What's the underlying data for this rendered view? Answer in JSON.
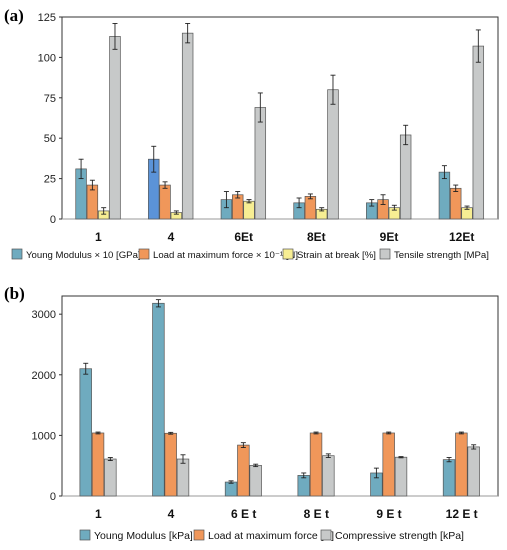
{
  "chart_data": [
    {
      "panel": "(a)",
      "type": "bar",
      "categories": [
        "1",
        "4",
        "6Et",
        "8Et",
        "9Et",
        "12Et"
      ],
      "ylim": [
        0,
        125
      ],
      "yticks": [
        0,
        25,
        50,
        75,
        100,
        125
      ],
      "grid": false,
      "legend_position": "bottom",
      "series": [
        {
          "name": "Young Modulus × 10 [GPa]",
          "values": [
            31,
            37,
            12,
            10,
            10,
            29
          ],
          "errors": [
            6,
            8,
            5,
            3,
            2,
            4
          ],
          "color": "#6fabbf"
        },
        {
          "name": "Load at maximum force × 10⁻¹ [N]",
          "values": [
            21,
            21,
            15,
            14,
            12,
            19
          ],
          "errors": [
            3,
            2,
            2,
            1.5,
            3,
            2
          ],
          "color": "#f0975a"
        },
        {
          "name": "Strain at break [%]",
          "values": [
            5,
            4,
            11,
            6,
            7,
            7
          ],
          "errors": [
            2,
            1,
            1,
            1,
            1.5,
            1
          ],
          "color": "#f7ee93"
        },
        {
          "name": "Tensile strength [MPa]",
          "values": [
            113,
            115,
            69,
            80,
            52,
            107
          ],
          "errors": [
            8,
            6,
            9,
            9,
            6,
            10
          ],
          "color": "#c7c9c9"
        }
      ],
      "highlight": {
        "series": 0,
        "category": 1,
        "color": "#5b93d8"
      }
    },
    {
      "panel": "(b)",
      "type": "bar",
      "categories": [
        "1",
        "4",
        "6 E t",
        "8 E t",
        "9 E t",
        "12 E t"
      ],
      "ylim": [
        0,
        3300
      ],
      "yticks": [
        0,
        1000,
        2000,
        3000
      ],
      "grid": false,
      "legend_position": "bottom",
      "series": [
        {
          "name": "Young Modulus [kPa]",
          "values": [
            2100,
            3180,
            230,
            340,
            380,
            600
          ],
          "errors": [
            90,
            60,
            20,
            40,
            80,
            35
          ],
          "color": "#6fabbf"
        },
        {
          "name": "Load at maximum force [N]",
          "values": [
            1040,
            1035,
            840,
            1040,
            1040,
            1040
          ],
          "errors": [
            15,
            15,
            40,
            15,
            15,
            15
          ],
          "color": "#f0975a"
        },
        {
          "name": "Compressive strength [kPa]",
          "values": [
            610,
            610,
            505,
            665,
            640,
            810
          ],
          "errors": [
            25,
            70,
            20,
            30,
            10,
            35
          ],
          "color": "#c7c9c9"
        }
      ]
    }
  ]
}
